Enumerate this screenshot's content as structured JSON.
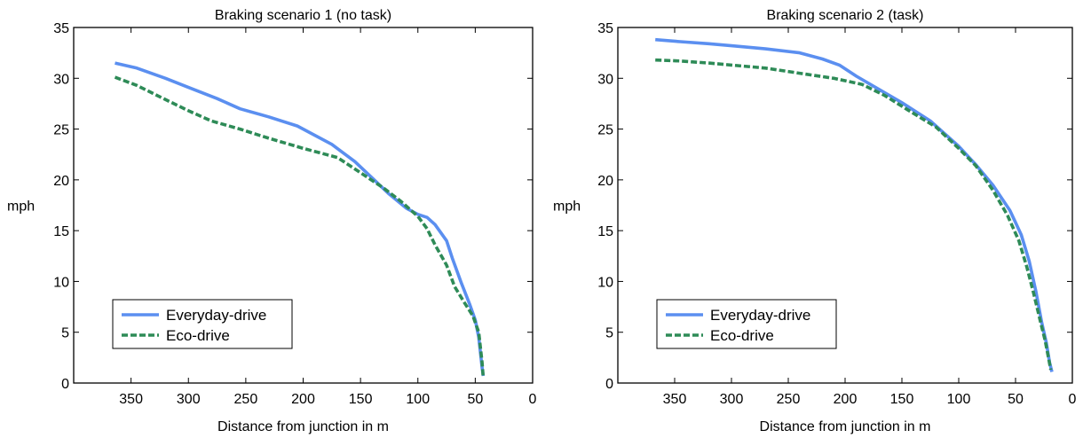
{
  "chart_data": [
    {
      "type": "line",
      "title": "Braking scenario 1 (no task)",
      "xlabel": "Distance from junction in m",
      "ylabel": "mph",
      "xlim": [
        400,
        0
      ],
      "ylim": [
        0,
        35
      ],
      "xticks": [
        "350",
        "300",
        "250",
        "200",
        "150",
        "100",
        "50",
        "0"
      ],
      "yticks": [
        "0",
        "5",
        "10",
        "15",
        "20",
        "25",
        "30",
        "35"
      ],
      "grid": false,
      "legend_position": "lower-left",
      "series": [
        {
          "name": "Everyday-drive",
          "color": "#5b8ff0",
          "style": "solid",
          "points": [
            [
              364,
              31.5
            ],
            [
              345,
              31.0
            ],
            [
              320,
              30.0
            ],
            [
              300,
              29.1
            ],
            [
              275,
              28.0
            ],
            [
              255,
              27.0
            ],
            [
              230,
              26.2
            ],
            [
              205,
              25.3
            ],
            [
              175,
              23.5
            ],
            [
              155,
              21.8
            ],
            [
              140,
              20.2
            ],
            [
              125,
              18.6
            ],
            [
              110,
              17.2
            ],
            [
              100,
              16.6
            ],
            [
              92,
              16.3
            ],
            [
              85,
              15.6
            ],
            [
              75,
              14.0
            ],
            [
              70,
              12.3
            ],
            [
              62,
              9.8
            ],
            [
              55,
              7.8
            ],
            [
              50,
              6.2
            ],
            [
              47,
              4.5
            ],
            [
              44,
              1.5
            ],
            [
              43,
              0.7
            ]
          ]
        },
        {
          "name": "Eco-drive",
          "color": "#2e8b57",
          "style": "dashed",
          "points": [
            [
              364,
              30.1
            ],
            [
              345,
              29.3
            ],
            [
              320,
              27.9
            ],
            [
              300,
              26.8
            ],
            [
              280,
              25.8
            ],
            [
              255,
              25.0
            ],
            [
              230,
              24.1
            ],
            [
              200,
              23.1
            ],
            [
              170,
              22.2
            ],
            [
              150,
              20.7
            ],
            [
              130,
              19.2
            ],
            [
              115,
              17.9
            ],
            [
              100,
              16.4
            ],
            [
              92,
              15.2
            ],
            [
              85,
              13.6
            ],
            [
              75,
              11.6
            ],
            [
              68,
              9.5
            ],
            [
              60,
              8.0
            ],
            [
              52,
              6.6
            ],
            [
              47,
              5.0
            ],
            [
              44,
              2.0
            ],
            [
              43,
              0.5
            ]
          ]
        }
      ]
    },
    {
      "type": "line",
      "title": "Braking scenario 2 (task)",
      "xlabel": "Distance from junction in m",
      "ylabel": "mph",
      "xlim": [
        400,
        0
      ],
      "ylim": [
        0,
        35
      ],
      "xticks": [
        "350",
        "300",
        "250",
        "200",
        "150",
        "100",
        "50",
        "0"
      ],
      "yticks": [
        "0",
        "5",
        "10",
        "15",
        "20",
        "25",
        "30",
        "35"
      ],
      "grid": false,
      "legend_position": "lower-left",
      "series": [
        {
          "name": "Everyday-drive",
          "color": "#5b8ff0",
          "style": "solid",
          "points": [
            [
              367,
              33.8
            ],
            [
              345,
              33.6
            ],
            [
              320,
              33.4
            ],
            [
              300,
              33.2
            ],
            [
              270,
              32.9
            ],
            [
              240,
              32.5
            ],
            [
              220,
              31.9
            ],
            [
              205,
              31.3
            ],
            [
              190,
              30.2
            ],
            [
              170,
              28.9
            ],
            [
              150,
              27.6
            ],
            [
              125,
              25.8
            ],
            [
              100,
              23.3
            ],
            [
              85,
              21.5
            ],
            [
              70,
              19.5
            ],
            [
              55,
              17.0
            ],
            [
              45,
              14.6
            ],
            [
              38,
              12.0
            ],
            [
              32,
              9.0
            ],
            [
              27,
              6.0
            ],
            [
              23,
              4.0
            ],
            [
              20,
              2.0
            ],
            [
              18,
              1.1
            ]
          ]
        },
        {
          "name": "Eco-drive",
          "color": "#2e8b57",
          "style": "dashed",
          "points": [
            [
              367,
              31.8
            ],
            [
              345,
              31.7
            ],
            [
              320,
              31.5
            ],
            [
              300,
              31.3
            ],
            [
              270,
              31.0
            ],
            [
              240,
              30.5
            ],
            [
              210,
              30.0
            ],
            [
              185,
              29.4
            ],
            [
              165,
              28.3
            ],
            [
              145,
              26.9
            ],
            [
              120,
              25.2
            ],
            [
              100,
              23.1
            ],
            [
              85,
              21.4
            ],
            [
              70,
              19.0
            ],
            [
              57,
              16.5
            ],
            [
              47,
              14.0
            ],
            [
              40,
              11.4
            ],
            [
              34,
              8.8
            ],
            [
              28,
              6.0
            ],
            [
              24,
              4.2
            ],
            [
              21,
              2.5
            ],
            [
              19,
              1.3
            ]
          ]
        }
      ]
    }
  ]
}
